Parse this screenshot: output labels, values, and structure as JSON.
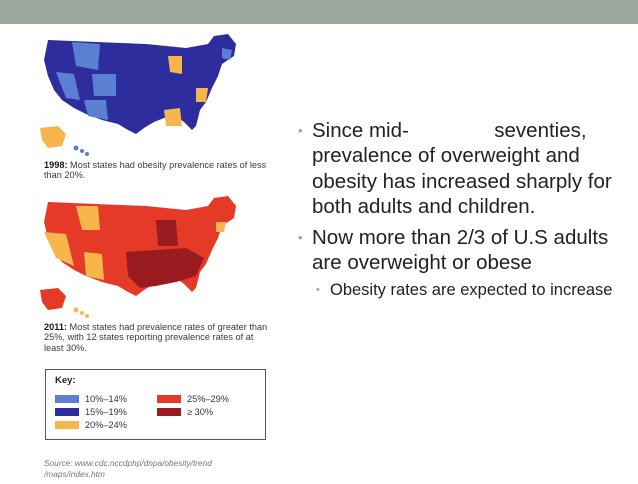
{
  "slide": {
    "bullets": [
      {
        "text": "Since mid-               seventies, prevalence of overweight and obesity has increased sharply for both adults and children."
      },
      {
        "text": "Now more than 2/3 of U.S adults are overweight or obese"
      }
    ],
    "sub_bullets": [
      {
        "text": "Obesity rates are expected to increase"
      }
    ]
  },
  "figure": {
    "caption_1998": {
      "year": "1998:",
      "text": " Most states had obesity prevalence rates of less than 20%."
    },
    "caption_2011": {
      "year": "2011:",
      "text": " Most states had prevalence rates of greater than 25%, with 12 states reporting prevalence rates of at least 30%."
    },
    "key": {
      "title": "Key:",
      "items": [
        {
          "label": "10%–14%",
          "color": "#5b7fd1"
        },
        {
          "label": "15%–19%",
          "color": "#2d2d9e"
        },
        {
          "label": "20%–24%",
          "color": "#f7b64c"
        },
        {
          "label": "25%–29%",
          "color": "#e53a27"
        },
        {
          "label": "≥ 30%",
          "color": "#9a1b1f"
        }
      ]
    },
    "source": "Source: www.cdc.nccdphp/dnpa/obesity/trend /maps/index.htm"
  },
  "colors": {
    "top_bar": "#9ba89d",
    "bullet_dot": "#9aa6a0"
  }
}
